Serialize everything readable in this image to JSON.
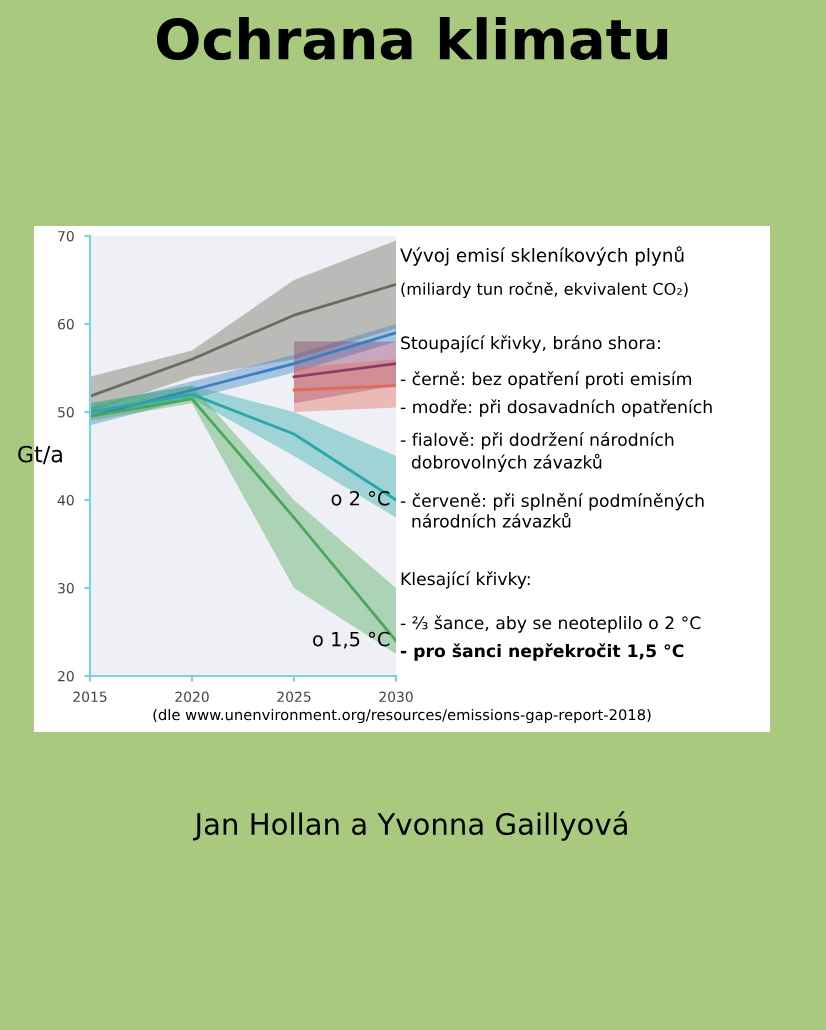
{
  "chart_data": {
    "type": "line",
    "title": "Ochrana klimatu",
    "ylabel": "Gt/a",
    "xlim": [
      2015,
      2030
    ],
    "xticks": [
      2015,
      2020,
      2025,
      2030
    ],
    "ylim": [
      20,
      70
    ],
    "yticks": [
      20,
      30,
      40,
      50,
      60,
      70
    ],
    "grid": false,
    "legend": false,
    "marker": "none",
    "line_style": "solid",
    "series": [
      {
        "color": "#6b6b5c",
        "x": [
          2015,
          2020,
          2025,
          2030
        ],
        "values": [
          51.8,
          56,
          61,
          64.5
        ],
        "lower": [
          50,
          54,
          56,
          59.5
        ],
        "upper": [
          54,
          57,
          65,
          69.5
        ]
      },
      {
        "color": "#3a7fc0",
        "x": [
          2015,
          2020,
          2025,
          2030
        ],
        "values": [
          49.5,
          52.5,
          55.5,
          59
        ],
        "lower": [
          48.5,
          51.5,
          54.5,
          58
        ],
        "upper": [
          50.5,
          53.5,
          56.5,
          60
        ]
      },
      {
        "color": "#8a3a6a",
        "x": [
          2025,
          2030
        ],
        "values": [
          54,
          55.5
        ],
        "lower": [
          51,
          53
        ],
        "upper": [
          58,
          58
        ]
      },
      {
        "color": "#e06a5a",
        "x": [
          2025,
          2030
        ],
        "values": [
          52.5,
          53
        ],
        "lower": [
          50,
          50.5
        ],
        "upper": [
          55,
          56
        ]
      },
      {
        "color": "#2aa8a8",
        "x": [
          2015,
          2020,
          2025,
          2030
        ],
        "values": [
          50,
          52,
          47.5,
          40
        ],
        "lower": [
          49.5,
          51.5,
          45,
          38
        ],
        "upper": [
          51,
          53,
          50,
          45
        ]
      },
      {
        "color": "#4aa85a",
        "x": [
          2015,
          2020,
          2025,
          2030
        ],
        "values": [
          49.5,
          51.5,
          38,
          24
        ],
        "lower": [
          49,
          51,
          30,
          22.5
        ],
        "upper": [
          51,
          53,
          40,
          30
        ]
      }
    ],
    "annotations": [
      {
        "text": "o 2 °C",
        "x": 2030,
        "y": 40
      },
      {
        "text": "o 1,5 °C",
        "x": 2030,
        "y": 24
      },
      "Vývoj emisí skleníkových plynů",
      "(miliardy tun ročně, ekvivalent CO₂)",
      "Stoupající křivky, bráno shora:",
      "- černě: bez opatření proti emisím",
      "- modře: při dosavadních opatřeních",
      "- fialově: při dodržení národních\n  dobrovolných závazků",
      "- červeně: při splnění podmíněných\n  národních závazků",
      "Klesající křivky:",
      "- ⅔ šance, aby se neoteplilo o 2 °C",
      "- pro šanci nepřekročit 1,5 °C",
      "(dle www.unenvironment.org/resources/emissions-gap-report-2018)",
      "Jan Hollan a Yvonna Gaillyová"
    ]
  }
}
